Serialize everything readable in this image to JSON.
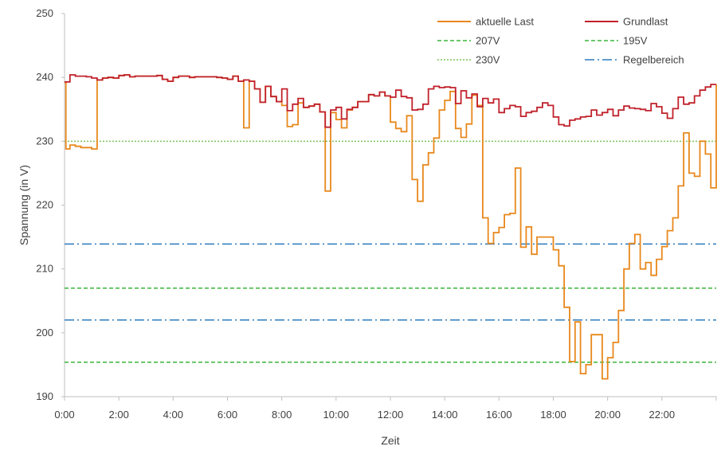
{
  "chart_data": {
    "type": "line",
    "xlabel": "Zeit",
    "ylabel": "Spannung (in V)",
    "xlim": [
      0,
      24
    ],
    "ylim": [
      190,
      250
    ],
    "x_ticks": [
      "0:00",
      "2:00",
      "4:00",
      "6:00",
      "8:00",
      "10:00",
      "12:00",
      "14:00",
      "16:00",
      "18:00",
      "20:00",
      "22:00"
    ],
    "y_ticks": [
      "190",
      "200",
      "210",
      "220",
      "230",
      "240",
      "250"
    ],
    "legend_position": "top-right",
    "colors": {
      "aktuelle_last": "#e8881c",
      "grundlast": "#c0212b",
      "v207": "#3ab53a",
      "v195": "#3ab53a",
      "v230": "#7cc45a",
      "regelbereich": "#2b7bbd",
      "axis": "#bfbfbf"
    },
    "legend": [
      {
        "label": "aktuelle Last",
        "key": "aktuelle_last",
        "style": "solid"
      },
      {
        "label": "Grundlast",
        "key": "grundlast",
        "style": "solid"
      },
      {
        "label": "207V",
        "key": "v207",
        "style": "dashed"
      },
      {
        "label": "195V",
        "key": "v195",
        "style": "dashed"
      },
      {
        "label": "230V",
        "key": "v230",
        "style": "dotted"
      },
      {
        "label": "Regelbereich",
        "key": "regelbereich",
        "style": "dashdot"
      }
    ],
    "reference_lines": [
      {
        "name": "207V",
        "y": 207,
        "key": "v207",
        "style": "dashed"
      },
      {
        "name": "195V",
        "y": 195.4,
        "key": "v195",
        "style": "dashed"
      },
      {
        "name": "230V",
        "y": 230,
        "key": "v230",
        "style": "dotted"
      },
      {
        "name": "Regelbereich",
        "y": 213.9,
        "key": "regelbereich",
        "style": "dashdot"
      },
      {
        "name": "Regelbereich",
        "y": 202,
        "key": "regelbereich",
        "style": "dashdot"
      }
    ],
    "series": [
      {
        "name": "Grundlast",
        "key": "grundlast",
        "points": [
          [
            0.0,
            239.3
          ],
          [
            0.2,
            240.4
          ],
          [
            0.4,
            240.2
          ],
          [
            0.6,
            240.2
          ],
          [
            0.8,
            240.1
          ],
          [
            1.0,
            239.9
          ],
          [
            1.2,
            239.6
          ],
          [
            1.4,
            239.9
          ],
          [
            1.6,
            240.0
          ],
          [
            1.8,
            239.9
          ],
          [
            2.0,
            240.3
          ],
          [
            2.2,
            240.4
          ],
          [
            2.4,
            240.1
          ],
          [
            2.6,
            240.2
          ],
          [
            2.8,
            240.2
          ],
          [
            3.0,
            240.2
          ],
          [
            3.2,
            240.2
          ],
          [
            3.4,
            240.3
          ],
          [
            3.6,
            239.7
          ],
          [
            3.8,
            239.4
          ],
          [
            4.0,
            240.0
          ],
          [
            4.2,
            240.2
          ],
          [
            4.4,
            240.2
          ],
          [
            4.6,
            240.0
          ],
          [
            4.8,
            240.1
          ],
          [
            5.0,
            240.1
          ],
          [
            5.2,
            240.1
          ],
          [
            5.4,
            240.1
          ],
          [
            5.6,
            240.0
          ],
          [
            5.8,
            239.9
          ],
          [
            6.0,
            239.7
          ],
          [
            6.2,
            240.2
          ],
          [
            6.4,
            239.4
          ],
          [
            6.6,
            239.6
          ],
          [
            6.8,
            239.4
          ],
          [
            7.0,
            238.2
          ],
          [
            7.2,
            236.1
          ],
          [
            7.4,
            238.6
          ],
          [
            7.6,
            237.0
          ],
          [
            7.8,
            236.2
          ],
          [
            8.0,
            238.2
          ],
          [
            8.2,
            234.8
          ],
          [
            8.4,
            235.8
          ],
          [
            8.6,
            236.7
          ],
          [
            8.8,
            235.3
          ],
          [
            9.0,
            235.5
          ],
          [
            9.2,
            235.8
          ],
          [
            9.4,
            234.6
          ],
          [
            9.6,
            232.2
          ],
          [
            9.8,
            234.9
          ],
          [
            10.0,
            235.3
          ],
          [
            10.2,
            233.5
          ],
          [
            10.4,
            235.0
          ],
          [
            10.6,
            235.3
          ],
          [
            10.8,
            236.2
          ],
          [
            11.0,
            236.2
          ],
          [
            11.2,
            237.3
          ],
          [
            11.4,
            237.1
          ],
          [
            11.6,
            237.7
          ],
          [
            11.8,
            237.1
          ],
          [
            12.0,
            236.9
          ],
          [
            12.2,
            238.0
          ],
          [
            12.4,
            237.0
          ],
          [
            12.6,
            236.8
          ],
          [
            12.8,
            234.9
          ],
          [
            13.0,
            235.0
          ],
          [
            13.2,
            235.8
          ],
          [
            13.4,
            238.2
          ],
          [
            13.6,
            238.6
          ],
          [
            13.8,
            238.4
          ],
          [
            14.0,
            238.5
          ],
          [
            14.2,
            238.4
          ],
          [
            14.4,
            235.9
          ],
          [
            14.6,
            237.9
          ],
          [
            14.8,
            236.8
          ],
          [
            15.0,
            237.4
          ],
          [
            15.2,
            235.4
          ],
          [
            15.4,
            236.7
          ],
          [
            15.6,
            236.0
          ],
          [
            15.8,
            236.6
          ],
          [
            16.0,
            234.5
          ],
          [
            16.2,
            235.1
          ],
          [
            16.4,
            235.6
          ],
          [
            16.6,
            235.4
          ],
          [
            16.8,
            233.9
          ],
          [
            17.0,
            234.5
          ],
          [
            17.2,
            234.7
          ],
          [
            17.4,
            235.3
          ],
          [
            17.6,
            236.0
          ],
          [
            17.8,
            235.6
          ],
          [
            18.0,
            233.8
          ],
          [
            18.2,
            232.6
          ],
          [
            18.4,
            232.4
          ],
          [
            18.6,
            233.3
          ],
          [
            18.8,
            233.5
          ],
          [
            19.0,
            233.8
          ],
          [
            19.2,
            233.9
          ],
          [
            19.4,
            234.9
          ],
          [
            19.6,
            234.1
          ],
          [
            19.8,
            234.5
          ],
          [
            20.0,
            235.0
          ],
          [
            20.2,
            234.0
          ],
          [
            20.4,
            234.9
          ],
          [
            20.6,
            235.5
          ],
          [
            20.8,
            235.2
          ],
          [
            21.0,
            235.1
          ],
          [
            21.2,
            235.0
          ],
          [
            21.4,
            234.8
          ],
          [
            21.6,
            235.9
          ],
          [
            21.8,
            235.4
          ],
          [
            22.0,
            234.4
          ],
          [
            22.2,
            233.6
          ],
          [
            22.4,
            235.1
          ],
          [
            22.6,
            236.9
          ],
          [
            22.8,
            235.8
          ],
          [
            23.0,
            236.0
          ],
          [
            23.2,
            237.1
          ],
          [
            23.4,
            238.0
          ],
          [
            23.6,
            238.5
          ],
          [
            23.8,
            238.9
          ],
          [
            24.0,
            238.9
          ]
        ]
      },
      {
        "name": "aktuelle Last",
        "key": "aktuelle_last",
        "points": [
          [
            0.0,
            239.2
          ],
          [
            0.05,
            228.8
          ],
          [
            0.2,
            229.4
          ],
          [
            0.4,
            229.2
          ],
          [
            0.6,
            229.0
          ],
          [
            0.8,
            229.0
          ],
          [
            1.0,
            228.8
          ],
          [
            1.2,
            239.6
          ],
          [
            1.4,
            239.9
          ],
          [
            1.6,
            240.0
          ],
          [
            1.8,
            239.9
          ],
          [
            2.0,
            240.3
          ],
          [
            2.2,
            240.4
          ],
          [
            2.4,
            240.1
          ],
          [
            2.6,
            240.2
          ],
          [
            2.8,
            240.2
          ],
          [
            3.0,
            240.2
          ],
          [
            3.2,
            240.2
          ],
          [
            3.4,
            240.3
          ],
          [
            3.6,
            239.7
          ],
          [
            3.8,
            239.4
          ],
          [
            4.0,
            240.0
          ],
          [
            4.2,
            240.2
          ],
          [
            4.4,
            240.2
          ],
          [
            4.6,
            240.0
          ],
          [
            4.8,
            240.1
          ],
          [
            5.0,
            240.1
          ],
          [
            5.2,
            240.1
          ],
          [
            5.4,
            240.1
          ],
          [
            5.6,
            240.0
          ],
          [
            5.8,
            239.9
          ],
          [
            6.0,
            239.7
          ],
          [
            6.2,
            240.2
          ],
          [
            6.4,
            239.4
          ],
          [
            6.6,
            232.1
          ],
          [
            6.8,
            239.4
          ],
          [
            7.0,
            238.2
          ],
          [
            7.2,
            236.1
          ],
          [
            7.4,
            238.6
          ],
          [
            7.6,
            237.0
          ],
          [
            7.8,
            236.2
          ],
          [
            8.0,
            235.6
          ],
          [
            8.2,
            232.3
          ],
          [
            8.4,
            232.6
          ],
          [
            8.6,
            236.0
          ],
          [
            8.8,
            235.3
          ],
          [
            9.0,
            235.5
          ],
          [
            9.2,
            235.8
          ],
          [
            9.4,
            234.6
          ],
          [
            9.6,
            222.2
          ],
          [
            9.8,
            234.5
          ],
          [
            10.0,
            233.4
          ],
          [
            10.2,
            232.1
          ],
          [
            10.4,
            234.9
          ],
          [
            10.6,
            235.3
          ],
          [
            10.8,
            236.2
          ],
          [
            11.0,
            236.2
          ],
          [
            11.2,
            237.3
          ],
          [
            11.4,
            237.1
          ],
          [
            11.6,
            237.7
          ],
          [
            11.8,
            237.1
          ],
          [
            12.0,
            233.0
          ],
          [
            12.2,
            232.0
          ],
          [
            12.4,
            231.5
          ],
          [
            12.6,
            234.0
          ],
          [
            12.8,
            224.0
          ],
          [
            13.0,
            220.6
          ],
          [
            13.2,
            226.3
          ],
          [
            13.4,
            228.2
          ],
          [
            13.6,
            230.5
          ],
          [
            13.8,
            234.9
          ],
          [
            14.0,
            236.4
          ],
          [
            14.2,
            237.8
          ],
          [
            14.4,
            232.0
          ],
          [
            14.6,
            230.6
          ],
          [
            14.8,
            232.7
          ],
          [
            15.0,
            237.2
          ],
          [
            15.2,
            235.6
          ],
          [
            15.4,
            218.0
          ],
          [
            15.6,
            214.0
          ],
          [
            15.8,
            215.7
          ],
          [
            16.0,
            216.5
          ],
          [
            16.2,
            218.5
          ],
          [
            16.4,
            218.7
          ],
          [
            16.6,
            225.8
          ],
          [
            16.8,
            213.4
          ],
          [
            17.0,
            216.6
          ],
          [
            17.2,
            212.3
          ],
          [
            17.4,
            215.0
          ],
          [
            17.6,
            215.0
          ],
          [
            17.8,
            215.0
          ],
          [
            18.0,
            213.0
          ],
          [
            18.2,
            210.5
          ],
          [
            18.4,
            204.0
          ],
          [
            18.6,
            195.5
          ],
          [
            18.8,
            201.7
          ],
          [
            19.0,
            193.6
          ],
          [
            19.2,
            195.0
          ],
          [
            19.4,
            199.7
          ],
          [
            19.6,
            199.7
          ],
          [
            19.8,
            192.8
          ],
          [
            20.0,
            196.1
          ],
          [
            20.2,
            198.5
          ],
          [
            20.4,
            203.5
          ],
          [
            20.6,
            210.0
          ],
          [
            20.8,
            214.0
          ],
          [
            21.0,
            215.4
          ],
          [
            21.2,
            210.0
          ],
          [
            21.4,
            211.0
          ],
          [
            21.6,
            209.0
          ],
          [
            21.8,
            211.5
          ],
          [
            22.0,
            213.5
          ],
          [
            22.2,
            216.0
          ],
          [
            22.4,
            218.0
          ],
          [
            22.6,
            223.0
          ],
          [
            22.8,
            231.3
          ],
          [
            23.0,
            225.0
          ],
          [
            23.2,
            224.5
          ],
          [
            23.4,
            230.0
          ],
          [
            23.6,
            228.0
          ],
          [
            23.8,
            222.7
          ],
          [
            24.0,
            238.9
          ]
        ]
      }
    ]
  }
}
